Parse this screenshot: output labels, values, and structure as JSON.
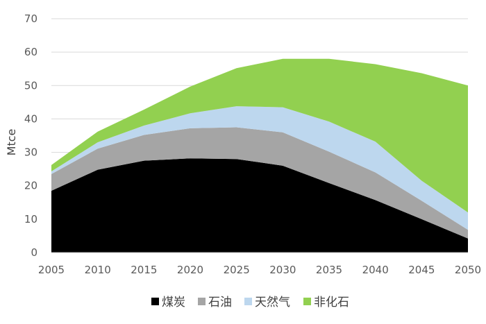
{
  "chart_data": {
    "type": "area",
    "stacked": true,
    "x": [
      2005,
      2010,
      2015,
      2020,
      2025,
      2030,
      2035,
      2040,
      2045,
      2050
    ],
    "ylabel": "Mtce",
    "ylim": [
      0,
      70
    ],
    "yticks": [
      0,
      10,
      20,
      30,
      40,
      50,
      60,
      70
    ],
    "grid": true,
    "legend_position": "bottom",
    "series": [
      {
        "name": "煤炭",
        "color": "#000000",
        "values": [
          18.5,
          24.8,
          27.5,
          28.2,
          28.0,
          26.0,
          20.8,
          15.7,
          10.0,
          4.2
        ]
      },
      {
        "name": "石油",
        "color": "#a5a5a5",
        "values": [
          5.0,
          6.3,
          7.7,
          9.0,
          9.5,
          10.0,
          9.4,
          8.3,
          5.5,
          2.6
        ]
      },
      {
        "name": "天然气",
        "color": "#bdd7ee",
        "values": [
          0.8,
          1.9,
          2.8,
          4.5,
          6.3,
          7.5,
          9.0,
          9.2,
          6.0,
          5.2
        ]
      },
      {
        "name": "非化石",
        "color": "#92d050",
        "values": [
          1.9,
          3.2,
          4.8,
          8.0,
          11.4,
          14.5,
          18.8,
          23.2,
          32.2,
          38.0
        ]
      }
    ]
  }
}
